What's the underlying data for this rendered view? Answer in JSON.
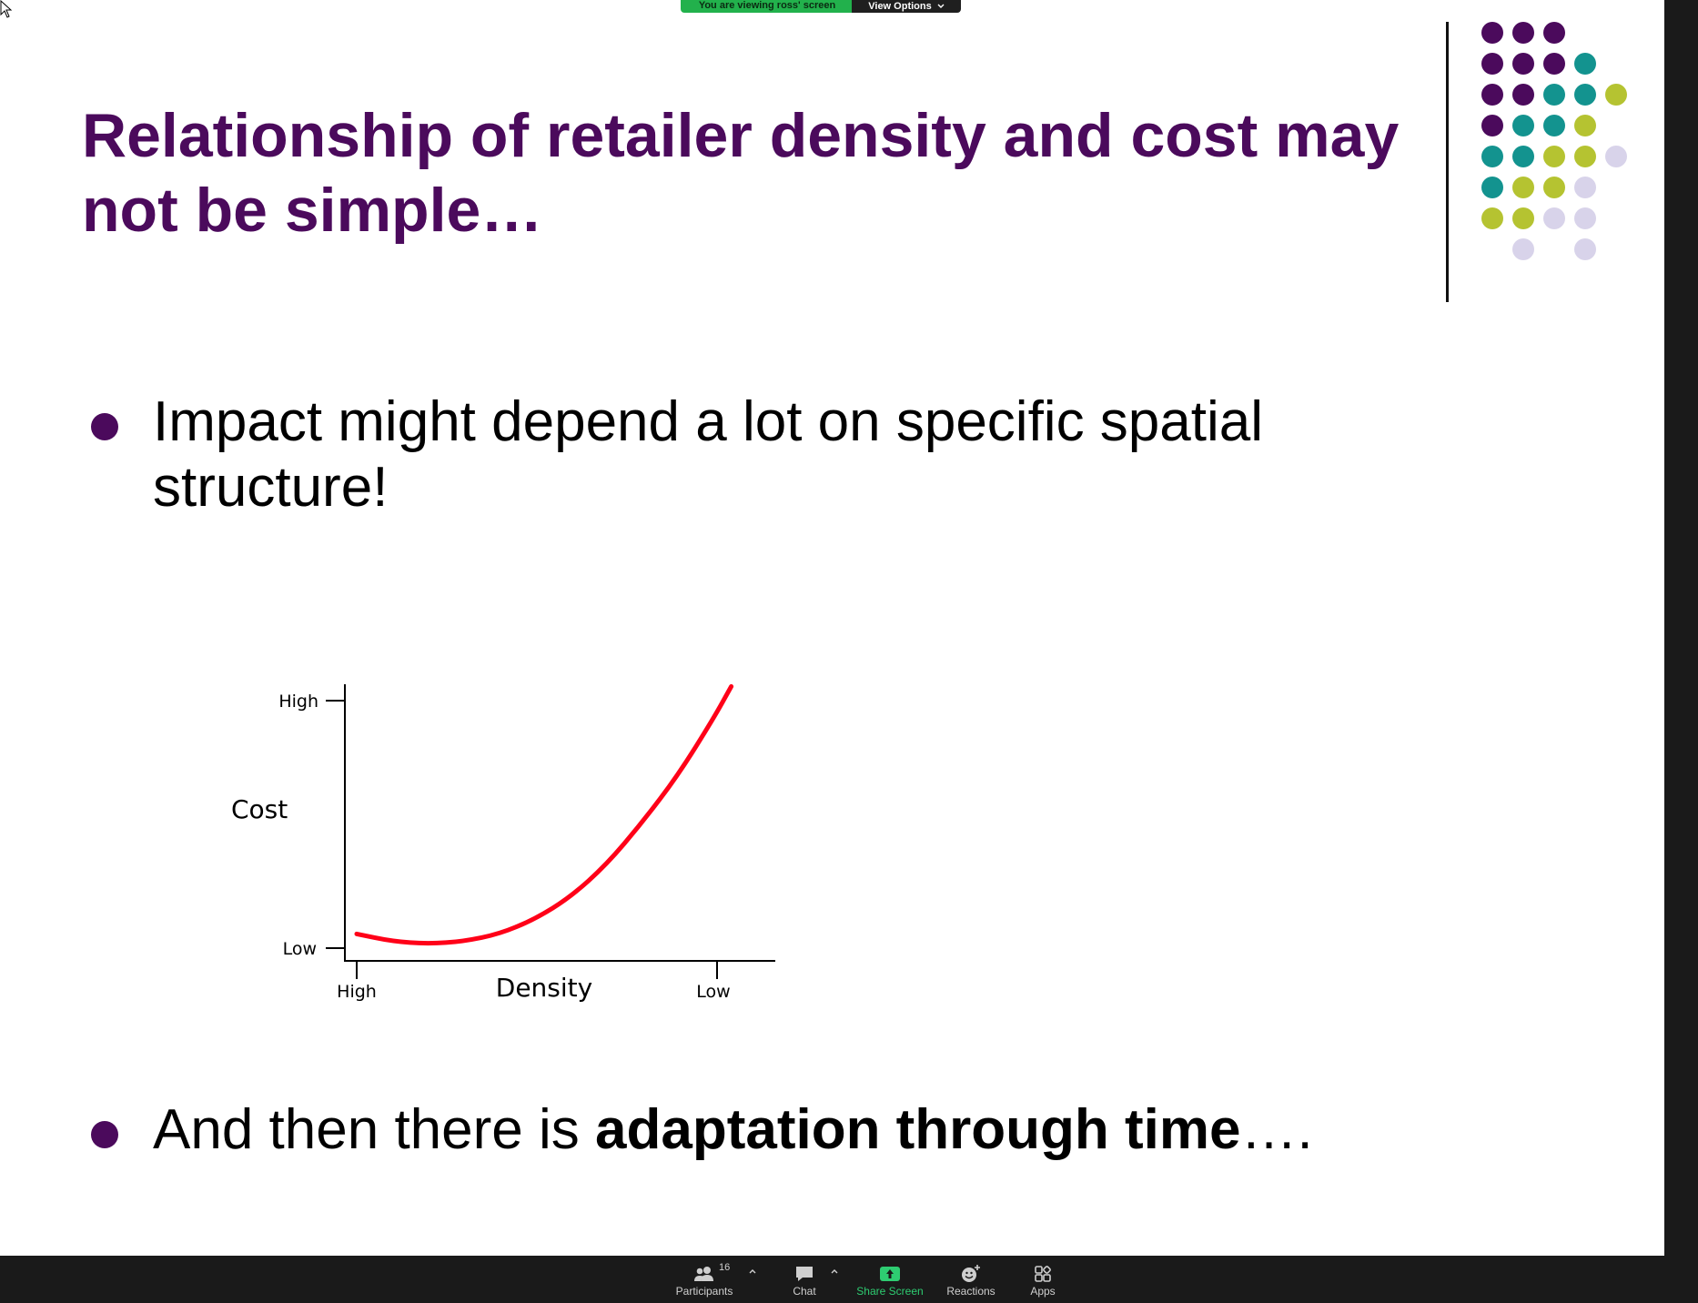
{
  "banner": {
    "viewing_text": "You are viewing ross' screen",
    "options_label": "View Options"
  },
  "slide": {
    "title_line1": "Relationship of retailer density and cost may",
    "title_line2": "not be simple…",
    "bullet1_line1": "Impact might depend a lot on specific spatial",
    "bullet1_line2": "structure!",
    "bullet2_plain": "And then there is ",
    "bullet2_bold": "adaptation through time",
    "bullet2_tail": "….",
    "colors": {
      "title": "#4b0a5c",
      "bullet": "#4b0a5c",
      "curve": "#ff0018"
    },
    "dot_grid_colors": [
      "#4b0a5c",
      "#13938f",
      "#b5c331",
      "#d8d3ea"
    ]
  },
  "chart_data": {
    "type": "line",
    "ylabel": "Cost",
    "xlabel": "Density",
    "y_ticks": [
      "High",
      "Low"
    ],
    "x_ticks": [
      "High",
      "Low"
    ],
    "x_direction": "High to Low (left to right)",
    "series": [
      {
        "x": [
          0.0,
          0.1,
          0.2,
          0.3,
          0.4,
          0.5,
          0.6,
          0.7,
          0.8,
          0.9,
          1.0,
          1.05
        ],
        "y": [
          0.05,
          0.02,
          0.01,
          0.02,
          0.05,
          0.11,
          0.2,
          0.33,
          0.5,
          0.69,
          0.92,
          1.05
        ]
      }
    ],
    "grid": false,
    "legend": "none"
  },
  "toolbar": {
    "participants_label": "Participants",
    "participants_count": "16",
    "chat_label": "Chat",
    "share_label": "Share Screen",
    "reactions_label": "Reactions",
    "apps_label": "Apps"
  }
}
